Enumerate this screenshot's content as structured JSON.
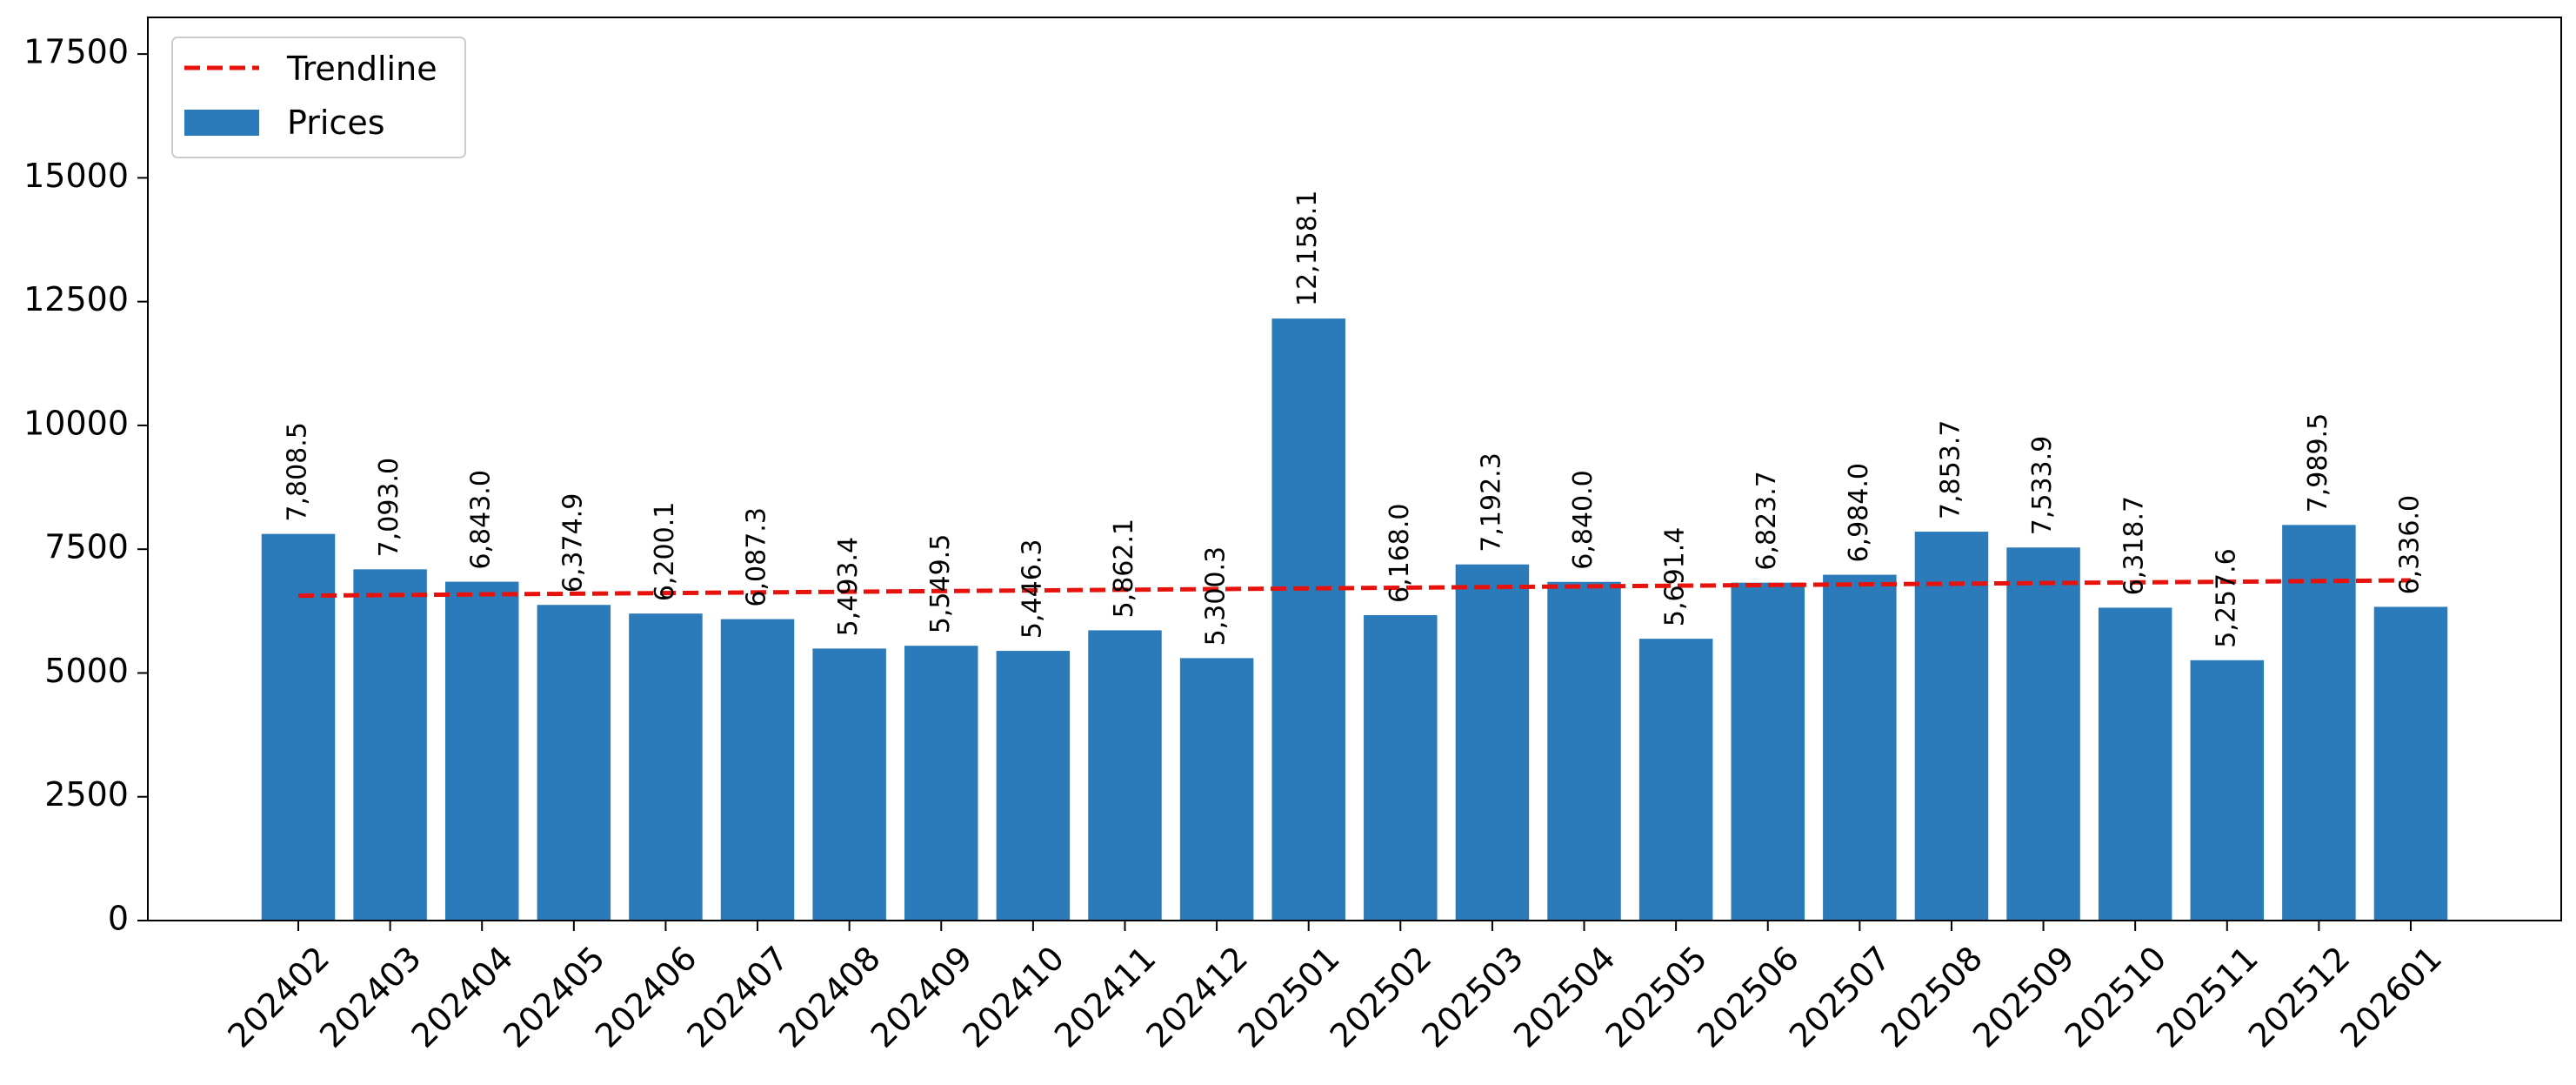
{
  "chart_data": {
    "type": "bar",
    "categories": [
      "202402",
      "202403",
      "202404",
      "202405",
      "202406",
      "202407",
      "202408",
      "202409",
      "202410",
      "202411",
      "202412",
      "202501",
      "202502",
      "202503",
      "202504",
      "202505",
      "202506",
      "202507",
      "202508",
      "202509",
      "202510",
      "202511",
      "202512",
      "202601"
    ],
    "series": [
      {
        "name": "Prices",
        "type": "bar",
        "color": "#2b7bba",
        "values": [
          7808.5,
          7093.0,
          6843.0,
          6374.9,
          6200.1,
          6087.3,
          5493.4,
          5549.5,
          5446.3,
          5862.1,
          5300.3,
          12158.1,
          6168.0,
          7192.3,
          6840.0,
          5691.4,
          6823.7,
          6984.0,
          7853.7,
          7533.9,
          6318.7,
          5257.6,
          7989.5,
          6336.0
        ],
        "value_labels": [
          "7,808.5",
          "7,093.0",
          "6,843.0",
          "6,374.9",
          "6,200.1",
          "6,087.3",
          "5,493.4",
          "5,549.5",
          "5,446.3",
          "5,862.1",
          "5,300.3",
          "12,158.1",
          "6,168.0",
          "7,192.3",
          "6,840.0",
          "5,691.4",
          "6,823.7",
          "6,984.0",
          "7,853.7",
          "7,533.9",
          "6,318.7",
          "5,257.6",
          "7,989.5",
          "6,336.0"
        ]
      },
      {
        "name": "Trendline",
        "type": "line",
        "style": "dashed",
        "color": "#e8120c",
        "start": 6560,
        "end": 6870
      }
    ],
    "title": "",
    "xlabel": "",
    "ylabel": "",
    "ylim": [
      0,
      18240
    ],
    "yticks": [
      0,
      2500,
      5000,
      7500,
      10000,
      12500,
      15000,
      17500
    ],
    "ytick_labels": [
      "0",
      "2500",
      "5000",
      "7500",
      "10000",
      "12500",
      "15000",
      "17500"
    ],
    "xtick_rotation": 45,
    "grid": false,
    "legend_position": "top-left"
  }
}
